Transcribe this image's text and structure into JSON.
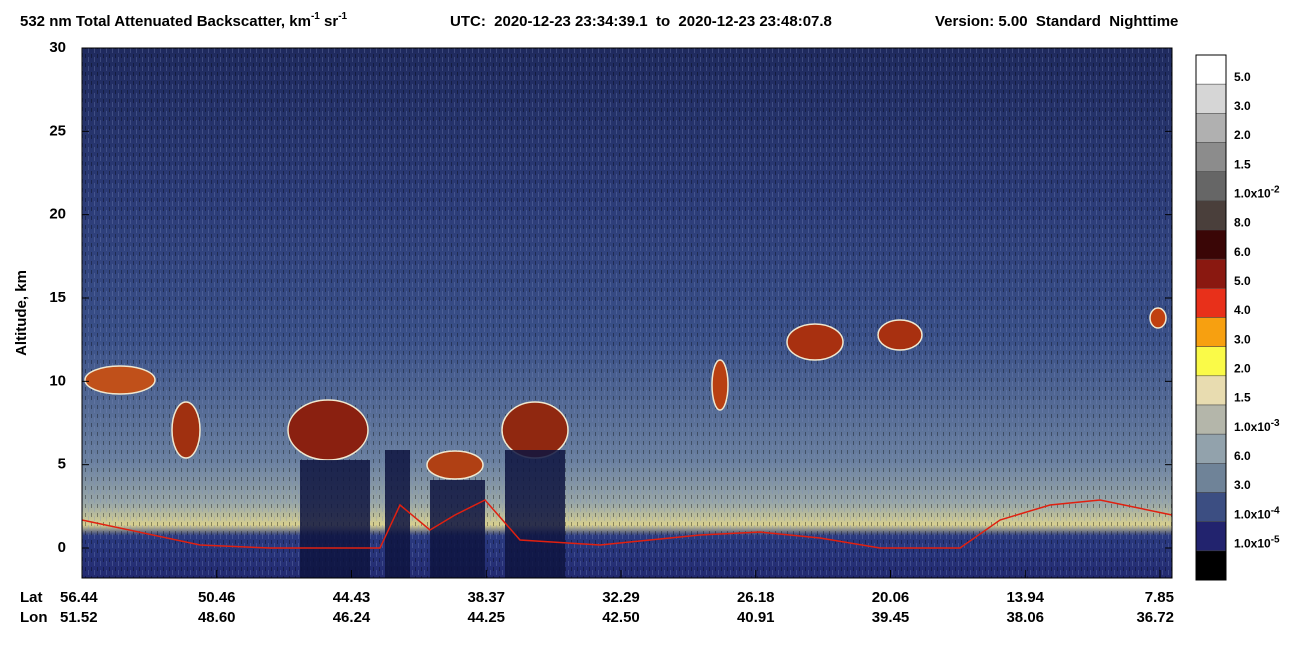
{
  "chart_data": {
    "type": "heatmap",
    "title": {
      "main": "532 nm Total Attenuated Backscatter, km",
      "sup1": "-1",
      "mid": " sr",
      "sup2": "-1",
      "utc": "UTC:  2020-12-23 23:34:39.1  to  2020-12-23 23:48:07.8",
      "version": "Version: 5.00  Standard  Nighttime"
    },
    "y_label": "Altitude, km",
    "ylim": [
      -1.8,
      30
    ],
    "yticks": [
      0,
      5,
      10,
      15,
      20,
      25,
      30
    ],
    "x_row_labels": [
      "Lat",
      "Lon"
    ],
    "x_ticks": [
      {
        "lat": "56.44",
        "lon": "51.52"
      },
      {
        "lat": "50.46",
        "lon": "48.60"
      },
      {
        "lat": "44.43",
        "lon": "46.24"
      },
      {
        "lat": "38.37",
        "lon": "44.25"
      },
      {
        "lat": "32.29",
        "lon": "42.50"
      },
      {
        "lat": "26.18",
        "lon": "40.91"
      },
      {
        "lat": "20.06",
        "lon": "39.45"
      },
      {
        "lat": "13.94",
        "lon": "38.06"
      },
      {
        "lat": "7.85",
        "lon": "36.72"
      }
    ],
    "colorbar": {
      "colors": [
        "#ffffff",
        "#d6d6d6",
        "#b0b0b0",
        "#8c8c8c",
        "#666666",
        "#4a3f3b",
        "#3a0606",
        "#8a1810",
        "#e8301a",
        "#f7a010",
        "#fafa48",
        "#e8dcb0",
        "#b4b6aa",
        "#92a2ac",
        "#6f8398",
        "#3c4e82",
        "#22236e",
        "#000000"
      ],
      "labels": [
        {
          "text": "5.0"
        },
        {
          "text": "3.0"
        },
        {
          "text": "2.0"
        },
        {
          "text": "1.5"
        },
        {
          "text": "1.0x10",
          "sup": "-2"
        },
        {
          "text": "8.0"
        },
        {
          "text": "6.0"
        },
        {
          "text": "5.0"
        },
        {
          "text": "4.0"
        },
        {
          "text": "3.0"
        },
        {
          "text": "2.0"
        },
        {
          "text": "1.5"
        },
        {
          "text": "1.0x10",
          "sup": "-3"
        },
        {
          "text": "6.0"
        },
        {
          "text": "3.0"
        },
        {
          "text": "1.0x10",
          "sup": "-4"
        },
        {
          "text": "1.0x10",
          "sup": "-5"
        }
      ]
    }
  }
}
